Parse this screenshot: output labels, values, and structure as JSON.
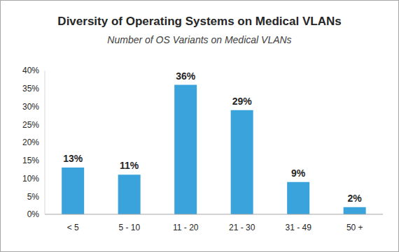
{
  "chart_data": {
    "type": "bar",
    "title": "Diversity of Operating Systems on Medical VLANs",
    "subtitle": "Number of OS Variants on Medical VLANs",
    "categories": [
      "< 5",
      "5 - 10",
      "11 - 20",
      "21 - 30",
      "31 - 49",
      "50 +"
    ],
    "values": [
      13,
      11,
      36,
      29,
      9,
      2
    ],
    "value_labels": [
      "13%",
      "11%",
      "36%",
      "29%",
      "9%",
      "2%"
    ],
    "color": "#3BA3DC",
    "ylim": [
      0,
      40
    ],
    "yticks": [
      {
        "value": 0,
        "label": "0%"
      },
      {
        "value": 5,
        "label": "5%"
      },
      {
        "value": 10,
        "label": "10%"
      },
      {
        "value": 15,
        "label": "15%"
      },
      {
        "value": 20,
        "label": "20%"
      },
      {
        "value": 25,
        "label": "25%"
      },
      {
        "value": 30,
        "label": "30%"
      },
      {
        "value": 35,
        "label": "35%"
      },
      {
        "value": 40,
        "label": "40%"
      }
    ],
    "grid": false,
    "data_labels": true
  }
}
